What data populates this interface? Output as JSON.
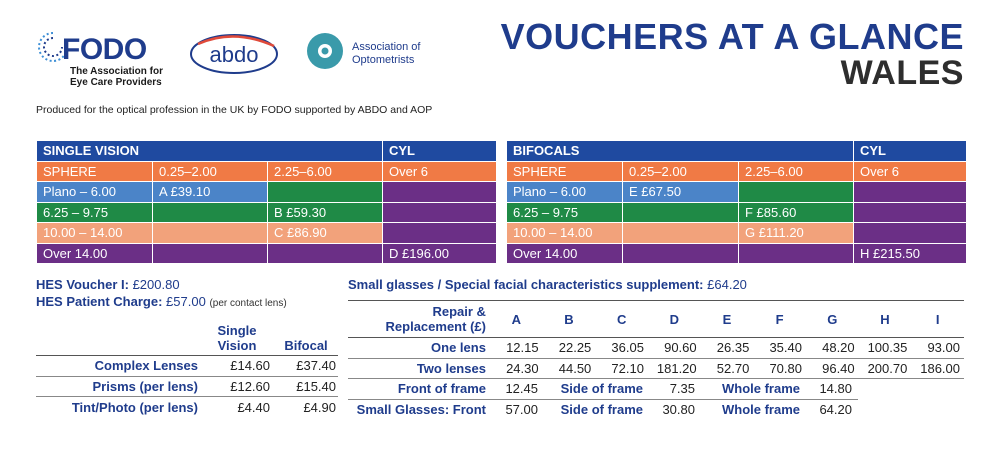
{
  "logos": {
    "fodo": "FODO",
    "fodo_tagline": [
      "The Association for",
      "Eye Care Providers"
    ],
    "abdo": "abdo",
    "aop": [
      "Association of",
      "Optometrists"
    ]
  },
  "title": {
    "line1": "VOUCHERS AT A GLANCE",
    "line2": "WALES"
  },
  "produced": "Produced for the optical profession in the UK by FODO supported by ABDO and AOP",
  "single_vision": {
    "header": "SINGLE VISION",
    "cyl": "CYL",
    "sphere": "SPHERE",
    "cols": [
      "0.25–2.00",
      "2.25–6.00",
      "Over 6"
    ],
    "rows": [
      {
        "label": "Plano – 6.00",
        "c1": "A £39.10",
        "c2": "",
        "c3": ""
      },
      {
        "label": "6.25 – 9.75",
        "c1": "",
        "c2": "B £59.30",
        "c3": ""
      },
      {
        "label": "10.00 – 14.00",
        "c1": "",
        "c2": "C £86.90",
        "c3": ""
      },
      {
        "label": "Over 14.00",
        "c1": "",
        "c2": "",
        "c3": "D £196.00"
      }
    ]
  },
  "bifocals": {
    "header": "BIFOCALS",
    "cyl": "CYL",
    "sphere": "SPHERE",
    "cols": [
      "0.25–2.00",
      "2.25–6.00",
      "Over 6"
    ],
    "rows": [
      {
        "label": "Plano – 6.00",
        "c1": "E £67.50",
        "c2": "",
        "c3": ""
      },
      {
        "label": "6.25 – 9.75",
        "c1": "",
        "c2": "F £85.60",
        "c3": ""
      },
      {
        "label": "10.00 – 14.00",
        "c1": "",
        "c2": "G £111.20",
        "c3": ""
      },
      {
        "label": "Over 14.00",
        "c1": "",
        "c2": "",
        "c3": "H £215.50"
      }
    ]
  },
  "hes": {
    "voucher_label": "HES Voucher I:",
    "voucher_value": "£200.80",
    "charge_label": "HES Patient Charge:",
    "charge_value": "£57.00",
    "charge_note": "(per contact lens)"
  },
  "supplement": {
    "label": "Small glasses / Special facial characteristics supplement:",
    "value": "£64.20"
  },
  "lens_table": {
    "col1": [
      "Single",
      "Vision"
    ],
    "col2": "Bifocal",
    "rows": [
      {
        "name": "Complex Lenses",
        "sv": "£14.60",
        "bf": "£37.40"
      },
      {
        "name": "Prisms (per lens)",
        "sv": "£12.60",
        "bf": "£15.40"
      },
      {
        "name": "Tint/Photo (per lens)",
        "sv": "£4.40",
        "bf": "£4.90"
      }
    ]
  },
  "repair_table": {
    "header": [
      "Repair &",
      "Replacement (£)"
    ],
    "cols": [
      "A",
      "B",
      "C",
      "D",
      "E",
      "F",
      "G",
      "H",
      "I"
    ],
    "one_lens": {
      "name": "One lens",
      "values": [
        "12.15",
        "22.25",
        "36.05",
        "90.60",
        "26.35",
        "35.40",
        "48.20",
        "100.35",
        "93.00"
      ]
    },
    "two_lenses": {
      "name": "Two lenses",
      "values": [
        "24.30",
        "44.50",
        "72.10",
        "181.20",
        "52.70",
        "70.80",
        "96.40",
        "200.70",
        "186.00"
      ]
    },
    "front": {
      "name": "Front of frame",
      "v": "12.45",
      "side_label": "Side of frame",
      "side": "7.35",
      "whole_label": "Whole frame",
      "whole": "14.80"
    },
    "small": {
      "name": "Small Glasses: Front",
      "v": "57.00",
      "side_label": "Side of frame",
      "side": "30.80",
      "whole_label": "Whole frame",
      "whole": "64.20"
    }
  }
}
